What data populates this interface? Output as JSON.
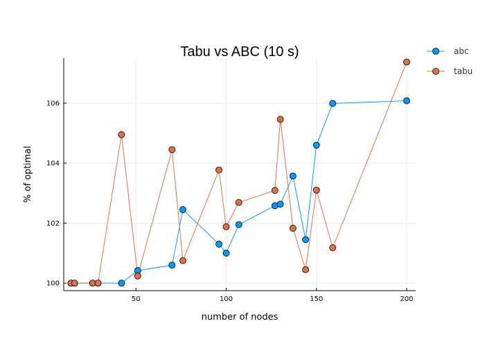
{
  "chart_data": {
    "type": "line",
    "title": "Tabu vs ABC (10 s)",
    "xlabel": "number of nodes",
    "ylabel": "% of optimal",
    "xlim": [
      10,
      205
    ],
    "ylim": [
      99.75,
      107.5
    ],
    "xticks": [
      50,
      100,
      150,
      200
    ],
    "yticks": [
      100,
      102,
      104,
      106
    ],
    "grid": true,
    "legend_position": "top-right",
    "series": [
      {
        "name": "abc",
        "color": "#009af9",
        "points": [
          [
            14,
            100
          ],
          [
            16,
            100
          ],
          [
            26,
            100
          ],
          [
            29,
            100
          ],
          [
            42,
            100
          ],
          [
            51,
            100.42
          ],
          [
            70,
            100.6
          ],
          [
            76,
            102.45
          ],
          [
            96,
            101.3
          ],
          [
            100,
            101
          ],
          [
            107,
            101.95
          ],
          [
            127,
            102.58
          ],
          [
            130,
            102.63
          ],
          [
            137,
            103.57
          ],
          [
            144,
            101.45
          ],
          [
            150,
            104.6
          ],
          [
            159,
            105.99
          ],
          [
            200,
            106.08
          ]
        ]
      },
      {
        "name": "tabu",
        "color": "#e26f46",
        "points": [
          [
            14,
            100
          ],
          [
            16,
            100
          ],
          [
            26,
            100
          ],
          [
            29,
            100
          ],
          [
            42,
            104.95
          ],
          [
            51,
            100.24
          ],
          [
            70,
            104.45
          ],
          [
            76,
            100.75
          ],
          [
            96,
            103.77
          ],
          [
            100,
            101.88
          ],
          [
            107,
            102.69
          ],
          [
            127,
            103.09
          ],
          [
            130,
            105.46
          ],
          [
            137,
            101.83
          ],
          [
            144,
            100.45
          ],
          [
            150,
            103.1
          ],
          [
            159,
            101.18
          ],
          [
            200,
            107.37
          ]
        ]
      }
    ]
  }
}
